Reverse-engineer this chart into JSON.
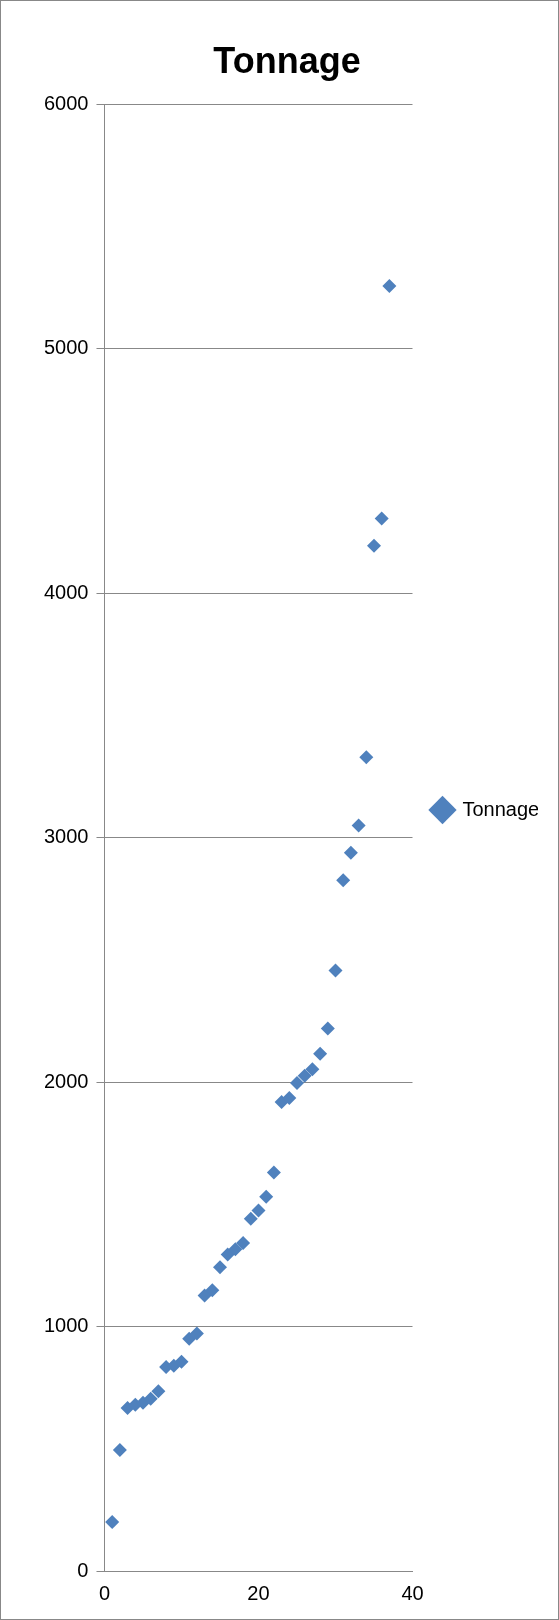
{
  "chart_data": {
    "type": "scatter",
    "title": "Tonnage",
    "x": [
      1,
      2,
      3,
      4,
      5,
      6,
      7,
      8,
      9,
      10,
      11,
      12,
      13,
      14,
      15,
      16,
      17,
      18,
      19,
      20,
      21,
      22,
      23,
      24,
      25,
      26,
      27,
      28,
      29,
      30,
      31,
      32,
      33,
      34,
      35,
      36,
      37
    ],
    "series": [
      {
        "name": "Tonnage",
        "color": "#4f81bd",
        "values": [
          200,
          495,
          667,
          680,
          688,
          705,
          735,
          834,
          840,
          856,
          950,
          972,
          1127,
          1148,
          1243,
          1295,
          1316,
          1342,
          1441,
          1475,
          1531,
          1630,
          1918,
          1935,
          1996,
          2026,
          2052,
          2116,
          2219,
          2456,
          2826,
          2938,
          3050,
          3329,
          4194,
          4305,
          5256
        ]
      }
    ],
    "xlim": [
      0,
      40
    ],
    "xticks": [
      0,
      20,
      40
    ],
    "ylim": [
      0,
      6000
    ],
    "yticks": [
      0,
      1000,
      2000,
      3000,
      4000,
      5000,
      6000
    ],
    "grid": "y",
    "legend": "right",
    "marker": "diamond"
  }
}
